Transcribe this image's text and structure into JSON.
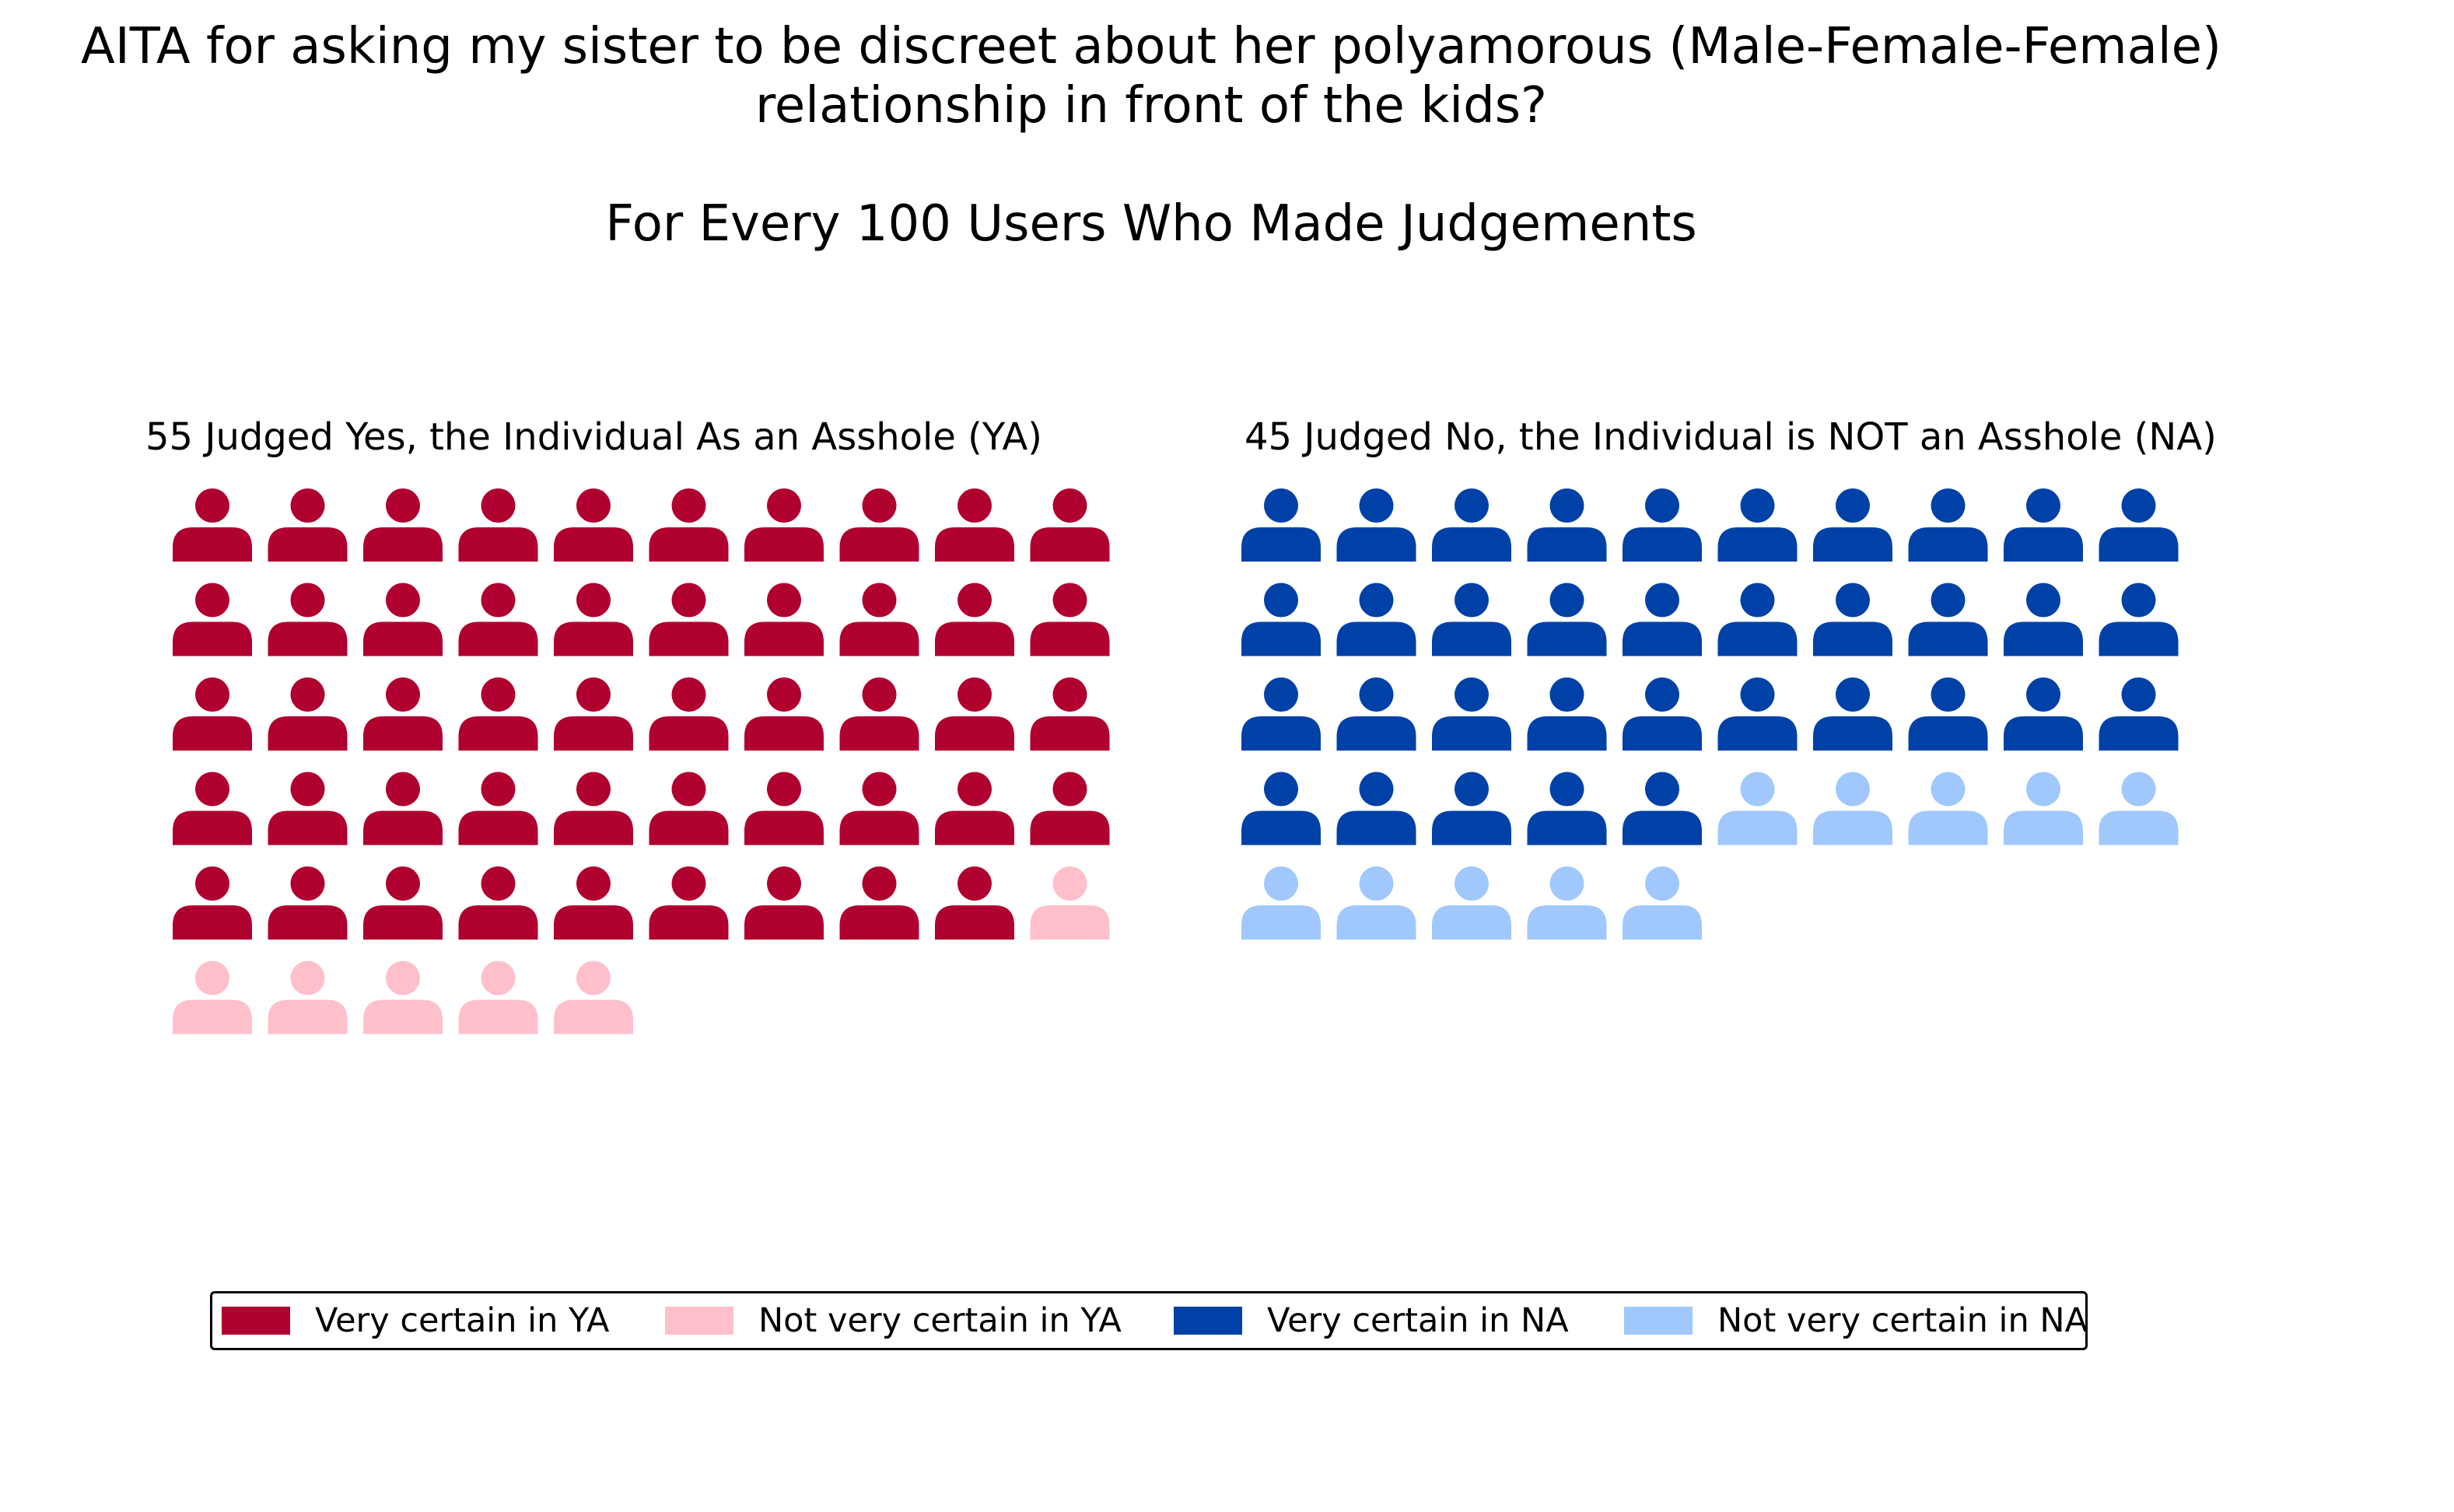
{
  "title_lines": [
    "AITA for asking my sister to be discreet about her polyamorous (Male-Female-Female)",
    "relationship in front of the kids?"
  ],
  "subtitle": "For Every 100 Users Who Made Judgements",
  "colors": {
    "very_certain_ya": "#b0002f",
    "not_very_certain_ya": "#ffc0cb",
    "very_certain_na": "#0041a8",
    "not_very_certain_na": "#a0c8fd"
  },
  "icon": "person-icon",
  "legend": [
    {
      "label": "Very certain in YA",
      "color": "#b0002f"
    },
    {
      "label": "Not very certain in YA",
      "color": "#ffc0cb"
    },
    {
      "label": "Very certain in NA",
      "color": "#0041a8"
    },
    {
      "label": "Not very certain in NA",
      "color": "#a0c8fd"
    }
  ],
  "chart_data": {
    "type": "waffle",
    "per_row": 10,
    "groups": [
      {
        "id": "ya",
        "title": "55 Judged Yes, the Individual As an Asshole (YA)",
        "total": 55,
        "segments": [
          {
            "name": "Very certain in YA",
            "count": 49,
            "color": "#b0002f"
          },
          {
            "name": "Not very certain in YA",
            "count": 6,
            "color": "#ffc0cb"
          }
        ]
      },
      {
        "id": "na",
        "title": "45 Judged No, the Individual is NOT an Asshole (NA)",
        "total": 45,
        "segments": [
          {
            "name": "Very certain in NA",
            "count": 35,
            "color": "#0041a8"
          },
          {
            "name": "Not very certain in NA",
            "count": 10,
            "color": "#a0c8fd"
          }
        ]
      }
    ],
    "legend_position": "bottom"
  }
}
